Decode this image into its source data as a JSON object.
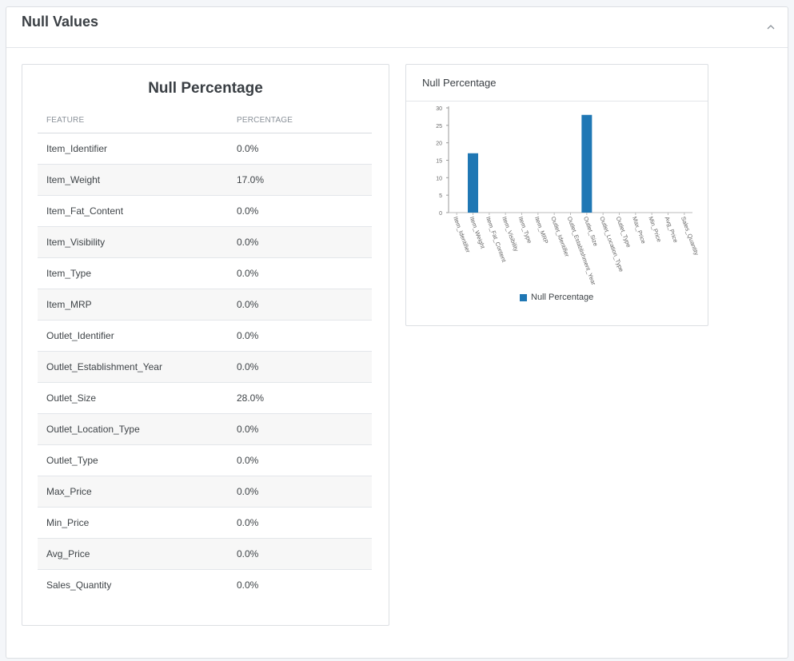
{
  "page": {
    "title": "Null Values"
  },
  "table": {
    "title": "Null Percentage",
    "columns": [
      "FEATURE",
      "PERCENTAGE"
    ],
    "rows": [
      {
        "feature": "Item_Identifier",
        "percentage": "0.0%"
      },
      {
        "feature": "Item_Weight",
        "percentage": "17.0%"
      },
      {
        "feature": "Item_Fat_Content",
        "percentage": "0.0%"
      },
      {
        "feature": "Item_Visibility",
        "percentage": "0.0%"
      },
      {
        "feature": "Item_Type",
        "percentage": "0.0%"
      },
      {
        "feature": "Item_MRP",
        "percentage": "0.0%"
      },
      {
        "feature": "Outlet_Identifier",
        "percentage": "0.0%"
      },
      {
        "feature": "Outlet_Establishment_Year",
        "percentage": "0.0%"
      },
      {
        "feature": "Outlet_Size",
        "percentage": "28.0%"
      },
      {
        "feature": "Outlet_Location_Type",
        "percentage": "0.0%"
      },
      {
        "feature": "Outlet_Type",
        "percentage": "0.0%"
      },
      {
        "feature": "Max_Price",
        "percentage": "0.0%"
      },
      {
        "feature": "Min_Price",
        "percentage": "0.0%"
      },
      {
        "feature": "Avg_Price",
        "percentage": "0.0%"
      },
      {
        "feature": "Sales_Quantity",
        "percentage": "0.0%"
      }
    ]
  },
  "chart_card": {
    "title": "Null Percentage"
  },
  "chart_data": {
    "type": "bar",
    "title": "Null Percentage",
    "xlabel": "",
    "ylabel": "",
    "ylim": [
      0,
      30
    ],
    "yticks": [
      0,
      5,
      10,
      15,
      20,
      25,
      30
    ],
    "categories": [
      "Item_Identifier",
      "Item_Weight",
      "Item_Fat_Content",
      "Item_Visibility",
      "Item_Type",
      "Item_MRP",
      "Outlet_Identifier",
      "Outlet_Establishment_Year",
      "Outlet_Size",
      "Outlet_Location_Type",
      "Outlet_Type",
      "Max_Price",
      "Min_Price",
      "Avg_Price",
      "Sales_Quantity"
    ],
    "series": [
      {
        "name": "Null Percentage",
        "values": [
          0,
          17,
          0,
          0,
          0,
          0,
          0,
          0,
          28,
          0,
          0,
          0,
          0,
          0,
          0
        ]
      }
    ],
    "legend": "bottom-center",
    "grid": false
  },
  "colors": {
    "bar": "#1f77b4"
  }
}
